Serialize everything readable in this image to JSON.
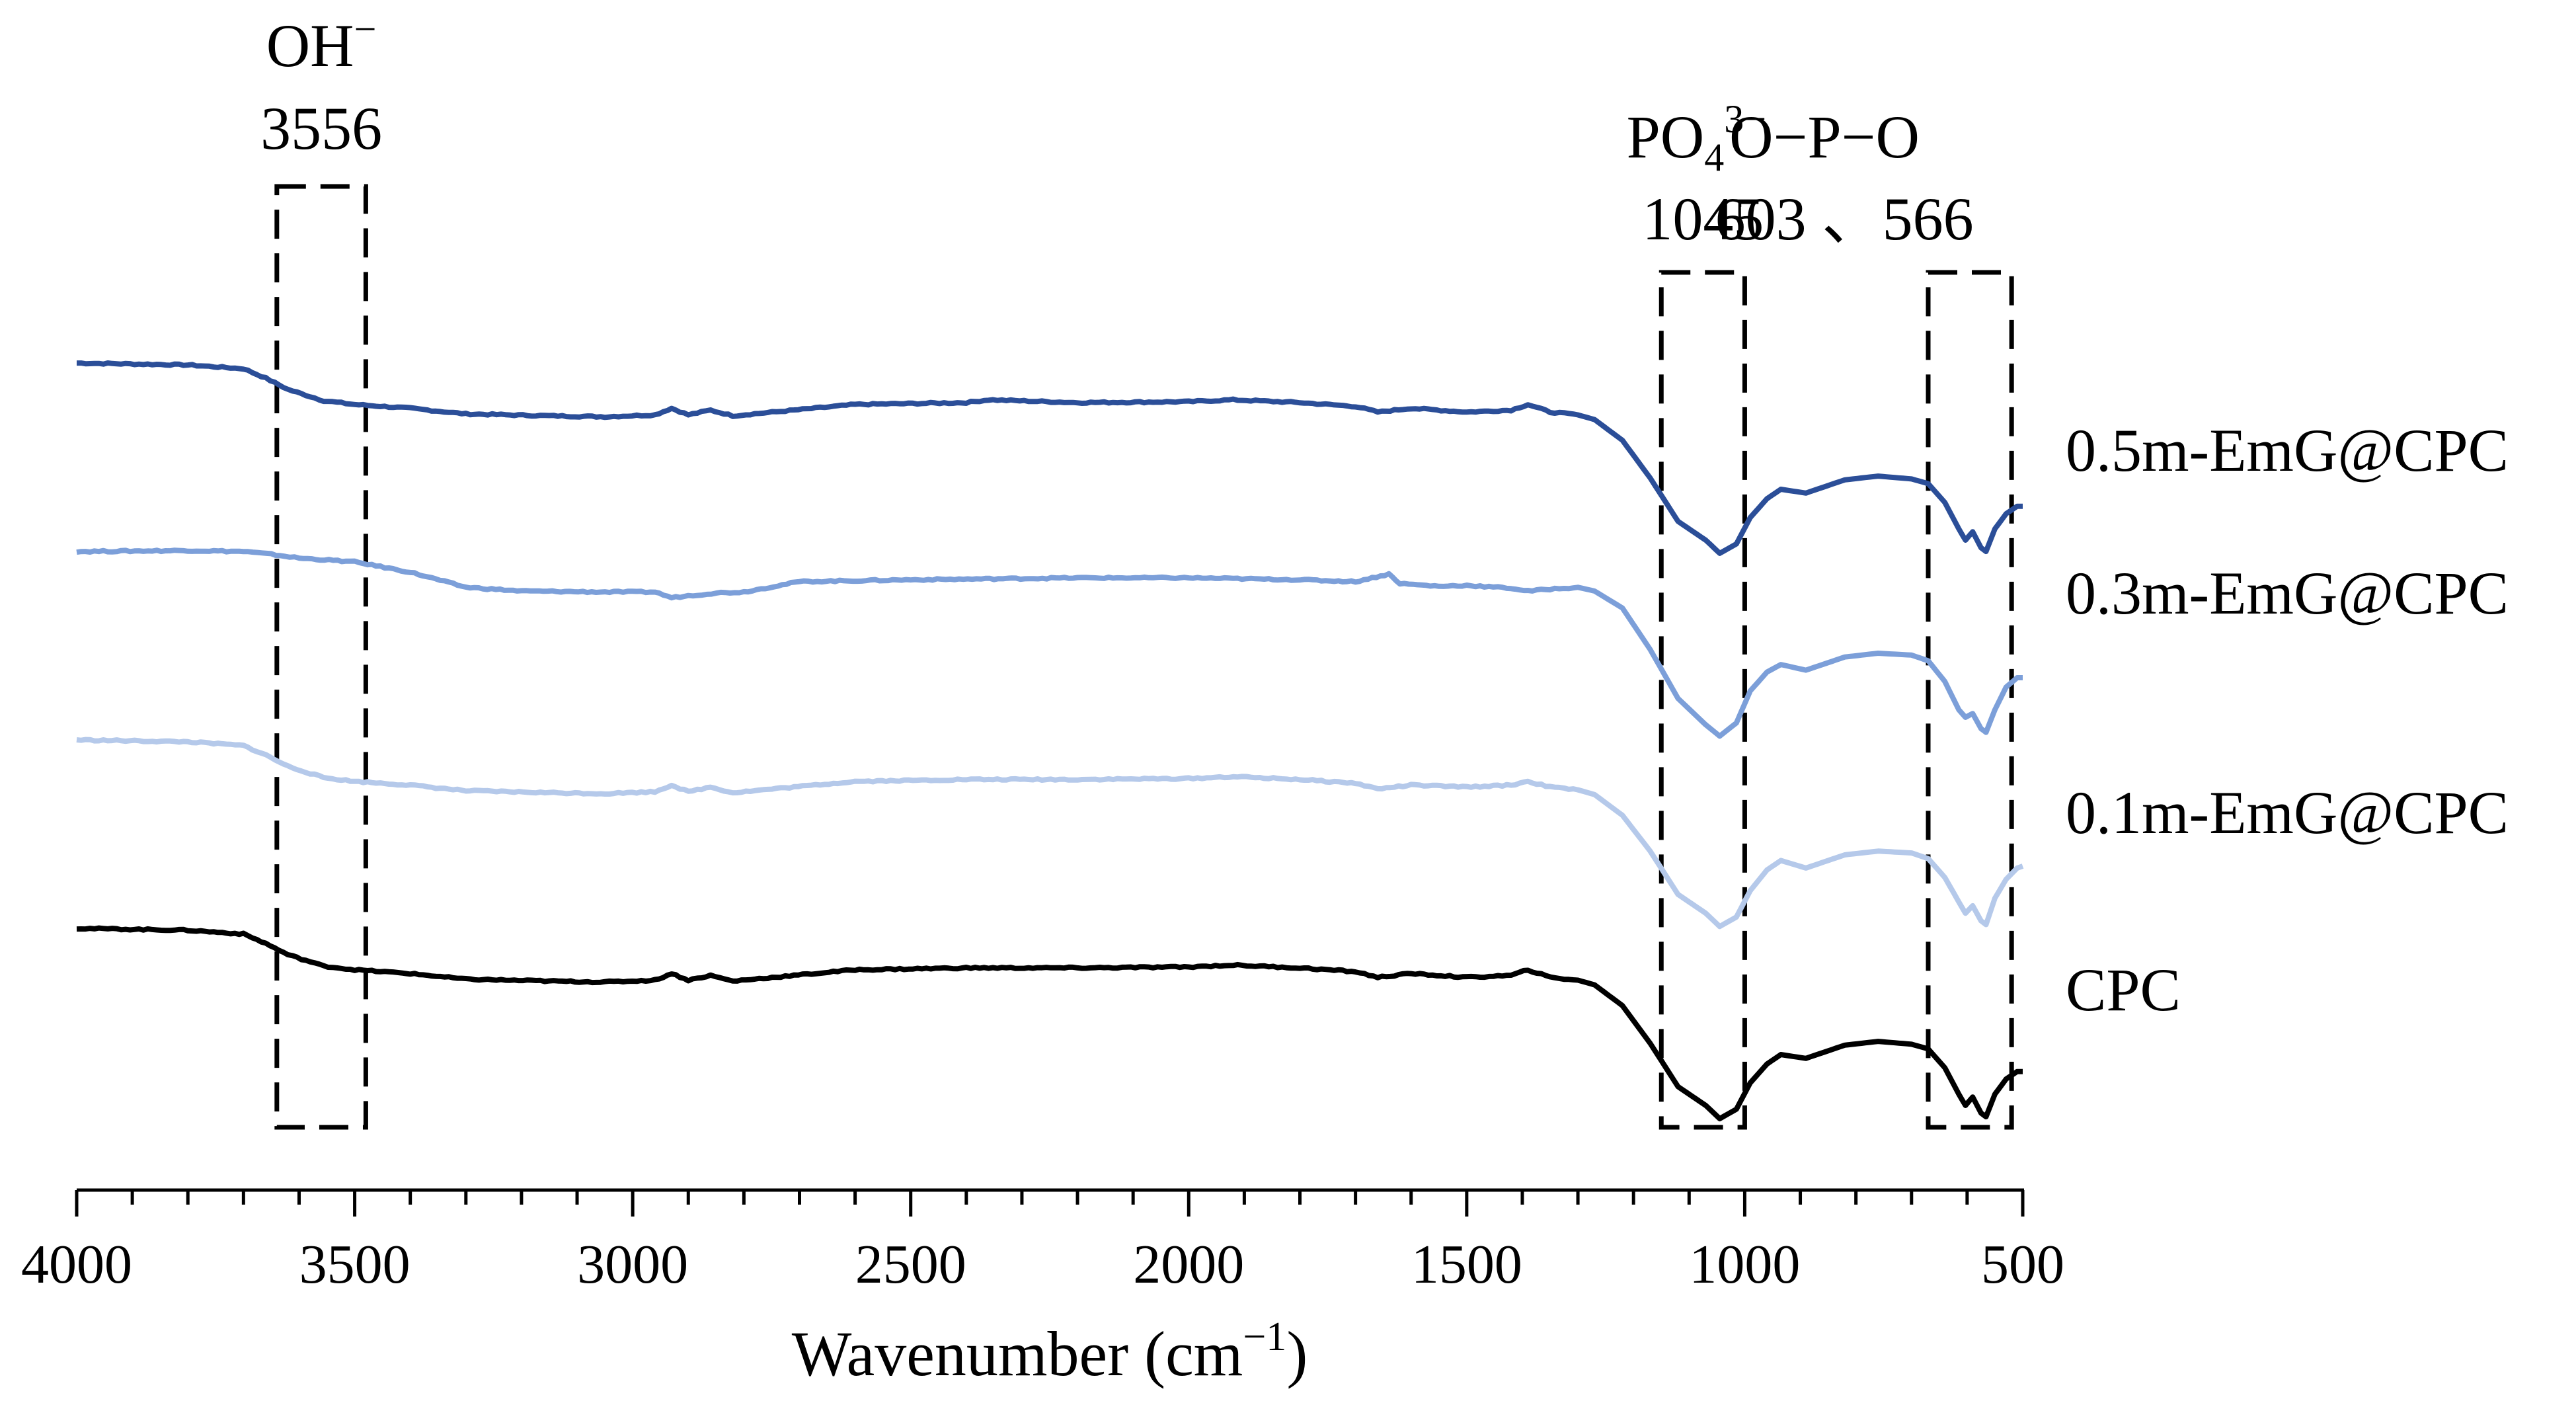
{
  "chart_data": {
    "type": "line",
    "title": "",
    "xlabel": "Wavenumber (cm",
    "xlabel_sup": "−1",
    "xlabel_suffix": ")",
    "ylabel": "",
    "xlim": [
      4000,
      500
    ],
    "x_reversed": true,
    "y_axis_visible": false,
    "grid": false,
    "ticks": [
      4000,
      3500,
      3000,
      2500,
      2000,
      1500,
      1000,
      500
    ],
    "tick_labels": [
      "4000",
      "3500",
      "3000",
      "2500",
      "2000",
      "1500",
      "1000",
      "500"
    ],
    "series": [
      {
        "name": "0.5m-EmG@CPC",
        "color": "#2b4e98",
        "offset": 3.0,
        "points": [
          [
            4000,
            0.94
          ],
          [
            3800,
            0.93
          ],
          [
            3700,
            0.91
          ],
          [
            3660,
            0.86
          ],
          [
            3620,
            0.8
          ],
          [
            3556,
            0.74
          ],
          [
            3500,
            0.72
          ],
          [
            3400,
            0.7
          ],
          [
            3300,
            0.67
          ],
          [
            3150,
            0.66
          ],
          [
            3050,
            0.655
          ],
          [
            2960,
            0.665
          ],
          [
            2930,
            0.7
          ],
          [
            2900,
            0.665
          ],
          [
            2860,
            0.69
          ],
          [
            2820,
            0.66
          ],
          [
            2600,
            0.72
          ],
          [
            2400,
            0.73
          ],
          [
            2360,
            0.745
          ],
          [
            2200,
            0.73
          ],
          [
            2000,
            0.735
          ],
          [
            1920,
            0.745
          ],
          [
            1800,
            0.73
          ],
          [
            1700,
            0.71
          ],
          [
            1660,
            0.68
          ],
          [
            1600,
            0.7
          ],
          [
            1500,
            0.68
          ],
          [
            1420,
            0.69
          ],
          [
            1390,
            0.72
          ],
          [
            1350,
            0.68
          ],
          [
            1300,
            0.665
          ],
          [
            1270,
            0.64
          ],
          [
            1220,
            0.53
          ],
          [
            1170,
            0.33
          ],
          [
            1120,
            0.1
          ],
          [
            1070,
            0.0
          ],
          [
            1045,
            -0.07
          ],
          [
            1015,
            -0.02
          ],
          [
            990,
            0.12
          ],
          [
            960,
            0.22
          ],
          [
            935,
            0.27
          ],
          [
            890,
            0.25
          ],
          [
            820,
            0.32
          ],
          [
            760,
            0.34
          ],
          [
            700,
            0.325
          ],
          [
            670,
            0.3
          ],
          [
            640,
            0.2
          ],
          [
            615,
            0.06
          ],
          [
            603,
            0.0
          ],
          [
            590,
            0.045
          ],
          [
            575,
            -0.04
          ],
          [
            566,
            -0.06
          ],
          [
            550,
            0.06
          ],
          [
            530,
            0.14
          ],
          [
            510,
            0.18
          ],
          [
            500,
            0.18
          ]
        ]
      },
      {
        "name": "0.3m-EmG@CPC",
        "color": "#7c9fd9",
        "offset": 2.0,
        "points": [
          [
            4000,
            0.94
          ],
          [
            3800,
            0.945
          ],
          [
            3700,
            0.94
          ],
          [
            3650,
            0.925
          ],
          [
            3600,
            0.905
          ],
          [
            3500,
            0.885
          ],
          [
            3400,
            0.83
          ],
          [
            3300,
            0.75
          ],
          [
            3200,
            0.73
          ],
          [
            3050,
            0.725
          ],
          [
            2960,
            0.725
          ],
          [
            2930,
            0.695
          ],
          [
            2900,
            0.705
          ],
          [
            2850,
            0.72
          ],
          [
            2800,
            0.725
          ],
          [
            2700,
            0.78
          ],
          [
            2500,
            0.79
          ],
          [
            2200,
            0.8
          ],
          [
            2000,
            0.8
          ],
          [
            1800,
            0.79
          ],
          [
            1700,
            0.78
          ],
          [
            1640,
            0.82
          ],
          [
            1620,
            0.77
          ],
          [
            1550,
            0.755
          ],
          [
            1500,
            0.76
          ],
          [
            1420,
            0.745
          ],
          [
            1390,
            0.73
          ],
          [
            1350,
            0.74
          ],
          [
            1300,
            0.75
          ],
          [
            1270,
            0.73
          ],
          [
            1220,
            0.64
          ],
          [
            1170,
            0.42
          ],
          [
            1120,
            0.16
          ],
          [
            1070,
            0.02
          ],
          [
            1045,
            -0.04
          ],
          [
            1015,
            0.03
          ],
          [
            990,
            0.2
          ],
          [
            960,
            0.3
          ],
          [
            935,
            0.34
          ],
          [
            890,
            0.31
          ],
          [
            820,
            0.38
          ],
          [
            760,
            0.4
          ],
          [
            700,
            0.39
          ],
          [
            670,
            0.36
          ],
          [
            640,
            0.25
          ],
          [
            615,
            0.1
          ],
          [
            603,
            0.06
          ],
          [
            590,
            0.08
          ],
          [
            575,
            0.0
          ],
          [
            566,
            -0.02
          ],
          [
            550,
            0.1
          ],
          [
            530,
            0.22
          ],
          [
            510,
            0.27
          ],
          [
            500,
            0.27
          ]
        ]
      },
      {
        "name": "0.1m-EmG@CPC",
        "color": "#b5c9ea",
        "offset": 1.0,
        "points": [
          [
            4000,
            0.94
          ],
          [
            3800,
            0.93
          ],
          [
            3700,
            0.91
          ],
          [
            3660,
            0.86
          ],
          [
            3620,
            0.8
          ],
          [
            3556,
            0.74
          ],
          [
            3500,
            0.72
          ],
          [
            3400,
            0.7
          ],
          [
            3300,
            0.67
          ],
          [
            3150,
            0.66
          ],
          [
            3050,
            0.655
          ],
          [
            2960,
            0.665
          ],
          [
            2930,
            0.7
          ],
          [
            2900,
            0.665
          ],
          [
            2860,
            0.69
          ],
          [
            2820,
            0.66
          ],
          [
            2600,
            0.72
          ],
          [
            2400,
            0.73
          ],
          [
            2200,
            0.73
          ],
          [
            2000,
            0.735
          ],
          [
            1920,
            0.745
          ],
          [
            1800,
            0.73
          ],
          [
            1700,
            0.71
          ],
          [
            1660,
            0.68
          ],
          [
            1600,
            0.7
          ],
          [
            1500,
            0.69
          ],
          [
            1420,
            0.7
          ],
          [
            1390,
            0.72
          ],
          [
            1350,
            0.69
          ],
          [
            1300,
            0.675
          ],
          [
            1270,
            0.65
          ],
          [
            1220,
            0.54
          ],
          [
            1170,
            0.35
          ],
          [
            1120,
            0.12
          ],
          [
            1070,
            0.02
          ],
          [
            1045,
            -0.05
          ],
          [
            1015,
            0.0
          ],
          [
            990,
            0.14
          ],
          [
            960,
            0.25
          ],
          [
            935,
            0.3
          ],
          [
            890,
            0.26
          ],
          [
            820,
            0.33
          ],
          [
            760,
            0.35
          ],
          [
            700,
            0.34
          ],
          [
            670,
            0.31
          ],
          [
            640,
            0.21
          ],
          [
            615,
            0.08
          ],
          [
            603,
            0.02
          ],
          [
            590,
            0.06
          ],
          [
            575,
            -0.02
          ],
          [
            566,
            -0.04
          ],
          [
            550,
            0.1
          ],
          [
            530,
            0.2
          ],
          [
            510,
            0.26
          ],
          [
            500,
            0.27
          ]
        ]
      },
      {
        "name": "CPC",
        "color": "#000000",
        "offset": 0.0,
        "points": [
          [
            4000,
            0.94
          ],
          [
            3800,
            0.93
          ],
          [
            3700,
            0.91
          ],
          [
            3660,
            0.86
          ],
          [
            3620,
            0.8
          ],
          [
            3556,
            0.74
          ],
          [
            3500,
            0.72
          ],
          [
            3400,
            0.7
          ],
          [
            3300,
            0.67
          ],
          [
            3150,
            0.66
          ],
          [
            3050,
            0.655
          ],
          [
            2960,
            0.665
          ],
          [
            2930,
            0.7
          ],
          [
            2900,
            0.665
          ],
          [
            2860,
            0.69
          ],
          [
            2820,
            0.66
          ],
          [
            2600,
            0.72
          ],
          [
            2400,
            0.73
          ],
          [
            2200,
            0.73
          ],
          [
            2000,
            0.735
          ],
          [
            1920,
            0.745
          ],
          [
            1800,
            0.73
          ],
          [
            1700,
            0.71
          ],
          [
            1660,
            0.68
          ],
          [
            1600,
            0.7
          ],
          [
            1500,
            0.68
          ],
          [
            1420,
            0.69
          ],
          [
            1390,
            0.72
          ],
          [
            1350,
            0.68
          ],
          [
            1300,
            0.665
          ],
          [
            1270,
            0.64
          ],
          [
            1220,
            0.53
          ],
          [
            1170,
            0.33
          ],
          [
            1120,
            0.1
          ],
          [
            1070,
            0.0
          ],
          [
            1045,
            -0.07
          ],
          [
            1015,
            -0.02
          ],
          [
            990,
            0.12
          ],
          [
            960,
            0.22
          ],
          [
            935,
            0.27
          ],
          [
            890,
            0.25
          ],
          [
            820,
            0.32
          ],
          [
            760,
            0.34
          ],
          [
            700,
            0.325
          ],
          [
            670,
            0.3
          ],
          [
            640,
            0.2
          ],
          [
            615,
            0.06
          ],
          [
            603,
            0.0
          ],
          [
            590,
            0.045
          ],
          [
            575,
            -0.04
          ],
          [
            566,
            -0.06
          ],
          [
            550,
            0.06
          ],
          [
            530,
            0.14
          ],
          [
            510,
            0.18
          ],
          [
            500,
            0.18
          ]
        ]
      }
    ],
    "annotations": [
      {
        "label": "OH",
        "label_sup": "−",
        "value": "3556",
        "x_from": 3640,
        "x_to": 3480
      },
      {
        "label": "PO",
        "label_sub": "4",
        "label_sup": "3−",
        "value": "1045",
        "x_from": 1150,
        "x_to": 1000
      },
      {
        "label": "O−P−O",
        "value": "603 、566",
        "x_from": 670,
        "x_to": 520
      }
    ]
  }
}
